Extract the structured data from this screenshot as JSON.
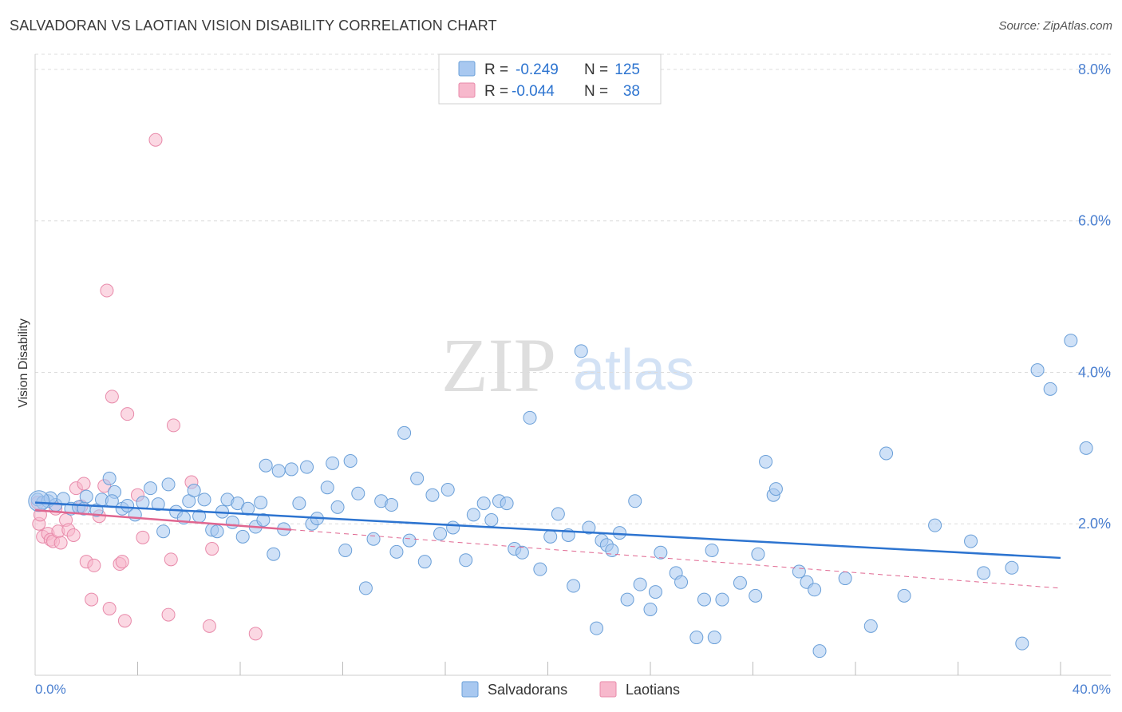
{
  "title": "SALVADORAN VS LAOTIAN VISION DISABILITY CORRELATION CHART",
  "source": "Source: ZipAtlas.com",
  "watermark": {
    "zip": "ZIP",
    "atlas": "atlas"
  },
  "colors": {
    "blue_fill": "#a8c8f0",
    "blue_stroke": "#6a9fd8",
    "blue_line": "#2d74d0",
    "pink_fill": "#f7b8cc",
    "pink_stroke": "#e88aaa",
    "pink_line": "#e06690",
    "axis_text": "#4a7fd0",
    "grid": "#dcdcdc"
  },
  "legend_box": {
    "rows": [
      {
        "r_label": "R =",
        "r_value": "-0.249",
        "n_label": "N =",
        "n_value": "125"
      },
      {
        "r_label": "R =",
        "r_value": "-0.044",
        "n_label": "N =",
        "n_value": "38"
      }
    ]
  },
  "chart_data": {
    "type": "scatter",
    "title": "SALVADORAN VS LAOTIAN VISION DISABILITY CORRELATION CHART",
    "xlabel": "",
    "ylabel": "Vision Disability",
    "xlim": [
      0,
      40
    ],
    "ylim": [
      0,
      8.2
    ],
    "x_tick_labels": [
      "0.0%",
      "40.0%"
    ],
    "y_ticks": [
      2.0,
      4.0,
      6.0,
      8.0
    ],
    "y_tick_labels": [
      "2.0%",
      "4.0%",
      "6.0%",
      "8.0%"
    ],
    "legend": [
      "Salvadorans",
      "Laotians"
    ],
    "series": [
      {
        "name": "Salvadorans",
        "R": -0.249,
        "N": 125,
        "trend": {
          "x0": 0,
          "y0": 2.28,
          "x1": 40,
          "y1": 1.55
        },
        "points": [
          [
            0.1,
            2.32
          ],
          [
            0.3,
            2.28
          ],
          [
            0.5,
            2.3
          ],
          [
            0.8,
            2.25
          ],
          [
            1.1,
            2.33
          ],
          [
            1.4,
            2.2
          ],
          [
            1.7,
            2.22
          ],
          [
            2.0,
            2.36
          ],
          [
            2.4,
            2.18
          ],
          [
            2.6,
            2.32
          ],
          [
            2.9,
            2.6
          ],
          [
            3.1,
            2.42
          ],
          [
            3.4,
            2.2
          ],
          [
            3.6,
            2.24
          ],
          [
            3.9,
            2.12
          ],
          [
            4.2,
            2.28
          ],
          [
            4.5,
            2.47
          ],
          [
            4.8,
            2.26
          ],
          [
            5.0,
            1.9
          ],
          [
            5.2,
            2.52
          ],
          [
            5.5,
            2.16
          ],
          [
            5.8,
            2.08
          ],
          [
            6.0,
            2.3
          ],
          [
            6.2,
            2.44
          ],
          [
            6.4,
            2.1
          ],
          [
            6.6,
            2.32
          ],
          [
            6.9,
            1.92
          ],
          [
            7.1,
            1.9
          ],
          [
            7.3,
            2.16
          ],
          [
            7.5,
            2.32
          ],
          [
            7.7,
            2.02
          ],
          [
            7.9,
            2.27
          ],
          [
            8.1,
            1.83
          ],
          [
            8.3,
            2.2
          ],
          [
            8.6,
            1.96
          ],
          [
            8.8,
            2.28
          ],
          [
            8.9,
            2.05
          ],
          [
            9.0,
            2.77
          ],
          [
            9.3,
            1.6
          ],
          [
            9.5,
            2.7
          ],
          [
            9.7,
            1.93
          ],
          [
            10.0,
            2.72
          ],
          [
            10.3,
            2.27
          ],
          [
            10.6,
            2.75
          ],
          [
            10.8,
            2.0
          ],
          [
            11.0,
            2.07
          ],
          [
            11.4,
            2.48
          ],
          [
            11.6,
            2.8
          ],
          [
            11.8,
            2.22
          ],
          [
            12.1,
            1.65
          ],
          [
            12.3,
            2.83
          ],
          [
            12.6,
            2.4
          ],
          [
            12.9,
            1.15
          ],
          [
            13.2,
            1.8
          ],
          [
            13.5,
            2.3
          ],
          [
            13.9,
            2.25
          ],
          [
            14.1,
            1.63
          ],
          [
            14.4,
            3.2
          ],
          [
            14.6,
            1.78
          ],
          [
            14.9,
            2.6
          ],
          [
            15.2,
            1.5
          ],
          [
            15.5,
            2.38
          ],
          [
            15.8,
            1.87
          ],
          [
            16.1,
            2.45
          ],
          [
            16.3,
            1.95
          ],
          [
            16.8,
            1.52
          ],
          [
            17.1,
            2.12
          ],
          [
            17.5,
            2.27
          ],
          [
            17.8,
            2.05
          ],
          [
            18.1,
            2.3
          ],
          [
            18.4,
            2.27
          ],
          [
            18.7,
            1.67
          ],
          [
            19.0,
            1.62
          ],
          [
            19.3,
            3.4
          ],
          [
            19.7,
            1.4
          ],
          [
            20.1,
            1.83
          ],
          [
            20.4,
            2.13
          ],
          [
            20.8,
            1.85
          ],
          [
            21.0,
            1.18
          ],
          [
            21.3,
            4.28
          ],
          [
            21.6,
            1.95
          ],
          [
            21.9,
            0.62
          ],
          [
            22.1,
            1.78
          ],
          [
            22.3,
            1.72
          ],
          [
            22.5,
            1.65
          ],
          [
            22.8,
            1.88
          ],
          [
            23.1,
            1.0
          ],
          [
            23.4,
            2.3
          ],
          [
            23.6,
            1.2
          ],
          [
            24.0,
            0.87
          ],
          [
            24.2,
            1.1
          ],
          [
            24.4,
            1.62
          ],
          [
            25.0,
            1.35
          ],
          [
            25.2,
            1.23
          ],
          [
            25.8,
            0.5
          ],
          [
            26.1,
            1.0
          ],
          [
            26.4,
            1.65
          ],
          [
            26.5,
            0.5
          ],
          [
            26.8,
            1.0
          ],
          [
            27.5,
            1.22
          ],
          [
            28.1,
            1.05
          ],
          [
            28.2,
            1.6
          ],
          [
            28.5,
            2.82
          ],
          [
            28.8,
            2.38
          ],
          [
            28.9,
            2.46
          ],
          [
            29.8,
            1.37
          ],
          [
            30.1,
            1.23
          ],
          [
            30.4,
            1.13
          ],
          [
            30.6,
            0.32
          ],
          [
            31.6,
            1.28
          ],
          [
            32.6,
            0.65
          ],
          [
            33.2,
            2.93
          ],
          [
            33.9,
            1.05
          ],
          [
            35.1,
            1.98
          ],
          [
            36.5,
            1.77
          ],
          [
            37.0,
            1.35
          ],
          [
            38.1,
            1.42
          ],
          [
            38.5,
            0.42
          ],
          [
            39.1,
            4.03
          ],
          [
            39.6,
            3.78
          ],
          [
            40.4,
            4.42
          ],
          [
            41.0,
            3.0
          ],
          [
            0.6,
            2.34
          ],
          [
            3.0,
            2.3
          ],
          [
            1.9,
            2.2
          ]
        ]
      },
      {
        "name": "Laotians",
        "R": -0.044,
        "N": 38,
        "trend": {
          "x0": 0,
          "y0": 2.18,
          "x1": 40,
          "y1": 1.15
        },
        "trend_solid_until_x": 10,
        "points": [
          [
            0.1,
            2.28
          ],
          [
            0.15,
            2.0
          ],
          [
            0.2,
            2.12
          ],
          [
            0.3,
            1.83
          ],
          [
            0.5,
            1.87
          ],
          [
            0.6,
            1.79
          ],
          [
            0.7,
            1.77
          ],
          [
            0.8,
            2.2
          ],
          [
            0.9,
            1.9
          ],
          [
            1.0,
            1.75
          ],
          [
            1.2,
            2.05
          ],
          [
            1.3,
            1.92
          ],
          [
            1.5,
            1.85
          ],
          [
            1.6,
            2.47
          ],
          [
            1.8,
            2.23
          ],
          [
            1.9,
            2.53
          ],
          [
            2.0,
            1.5
          ],
          [
            2.2,
            1.0
          ],
          [
            2.3,
            1.45
          ],
          [
            2.5,
            2.1
          ],
          [
            2.7,
            2.5
          ],
          [
            2.8,
            5.08
          ],
          [
            2.9,
            0.88
          ],
          [
            3.0,
            3.68
          ],
          [
            3.3,
            1.47
          ],
          [
            3.4,
            1.5
          ],
          [
            3.5,
            0.72
          ],
          [
            3.6,
            3.45
          ],
          [
            4.0,
            2.38
          ],
          [
            4.2,
            1.82
          ],
          [
            4.7,
            7.07
          ],
          [
            5.2,
            0.8
          ],
          [
            5.3,
            1.53
          ],
          [
            5.4,
            3.3
          ],
          [
            6.1,
            2.55
          ],
          [
            6.8,
            0.65
          ],
          [
            6.9,
            1.67
          ],
          [
            8.6,
            0.55
          ]
        ]
      }
    ]
  }
}
